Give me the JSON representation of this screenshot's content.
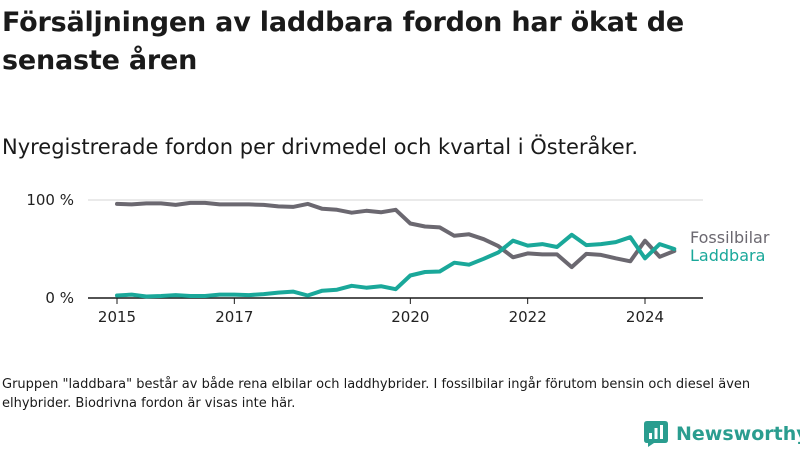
{
  "title": "Försäljningen av laddbara fordon har ökat de senaste åren",
  "subtitle": "Nyregistrerade fordon per drivmedel och kvartal i Österåker.",
  "footnote": "Gruppen \"laddbara\" består av både rena elbilar och laddhybrider. I fossilbilar ingår förutom bensin och diesel även elhybrider. Biodrivna fordon är visas inte här.",
  "brand": {
    "name": "Newsworthy",
    "color": "#2a9d8f"
  },
  "chart_data": {
    "type": "line",
    "title": "Försäljningen av laddbara fordon har ökat de senaste åren",
    "xlabel": "",
    "ylabel": "",
    "x_domain": [
      2015,
      2024.75
    ],
    "ylim": [
      0,
      100
    ],
    "y_ticks": [
      {
        "value": 0,
        "label": "0 %"
      },
      {
        "value": 100,
        "label": "100 %"
      }
    ],
    "x_ticks": [
      {
        "value": 2015,
        "label": "2015"
      },
      {
        "value": 2017,
        "label": "2017"
      },
      {
        "value": 2020,
        "label": "2020"
      },
      {
        "value": 2022,
        "label": "2022"
      },
      {
        "value": 2024,
        "label": "2024"
      }
    ],
    "x": [
      2015.0,
      2015.25,
      2015.5,
      2015.75,
      2016.0,
      2016.25,
      2016.5,
      2016.75,
      2017.0,
      2017.25,
      2017.5,
      2017.75,
      2018.0,
      2018.25,
      2018.5,
      2018.75,
      2019.0,
      2019.25,
      2019.5,
      2019.75,
      2020.0,
      2020.25,
      2020.5,
      2020.75,
      2021.0,
      2021.25,
      2021.5,
      2021.75,
      2022.0,
      2022.25,
      2022.5,
      2022.75,
      2023.0,
      2023.25,
      2023.5,
      2023.75,
      2024.0,
      2024.25,
      2024.5
    ],
    "series": [
      {
        "name": "Fossilbilar",
        "color": "#6b6870",
        "values": [
          96,
          95.5,
          96.5,
          96.5,
          95,
          97,
          97,
          95.5,
          95.5,
          95.5,
          95,
          93.5,
          93,
          96,
          91,
          90,
          87,
          89,
          87.5,
          90,
          76,
          73,
          72,
          63.5,
          65,
          60,
          53,
          41.5,
          45.5,
          44.5,
          44.5,
          31.5,
          45,
          44,
          40.5,
          37.5,
          58.5,
          42,
          48
        ]
      },
      {
        "name": "Laddbara",
        "color": "#1aa89a",
        "values": [
          2.5,
          3.5,
          1.5,
          2,
          3,
          2,
          2,
          3.5,
          3.5,
          3,
          4,
          5.5,
          6.5,
          2.5,
          7.5,
          8.5,
          12.5,
          10.5,
          12,
          9,
          23,
          26.5,
          27,
          36,
          34,
          40,
          46.5,
          58.5,
          53.5,
          55,
          52,
          64.5,
          54,
          55,
          57,
          62,
          40.5,
          55,
          50
        ]
      }
    ]
  }
}
